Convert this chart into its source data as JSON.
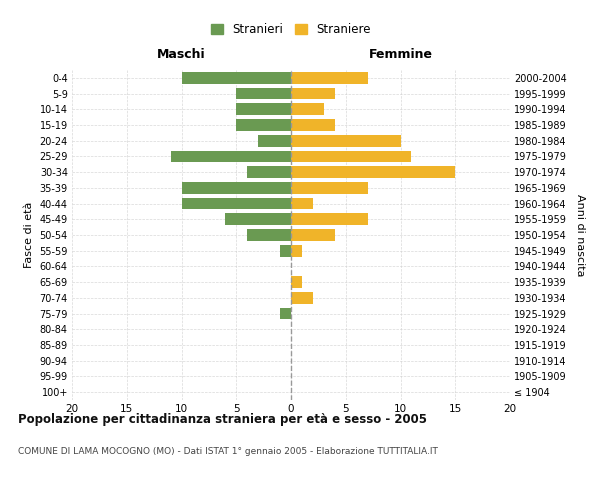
{
  "age_groups": [
    "100+",
    "95-99",
    "90-94",
    "85-89",
    "80-84",
    "75-79",
    "70-74",
    "65-69",
    "60-64",
    "55-59",
    "50-54",
    "45-49",
    "40-44",
    "35-39",
    "30-34",
    "25-29",
    "20-24",
    "15-19",
    "10-14",
    "5-9",
    "0-4"
  ],
  "birth_years": [
    "≤ 1904",
    "1905-1909",
    "1910-1914",
    "1915-1919",
    "1920-1924",
    "1925-1929",
    "1930-1934",
    "1935-1939",
    "1940-1944",
    "1945-1949",
    "1950-1954",
    "1955-1959",
    "1960-1964",
    "1965-1969",
    "1970-1974",
    "1975-1979",
    "1980-1984",
    "1985-1989",
    "1990-1994",
    "1995-1999",
    "2000-2004"
  ],
  "maschi": [
    0,
    0,
    0,
    0,
    0,
    1,
    0,
    0,
    0,
    1,
    4,
    6,
    10,
    10,
    4,
    11,
    3,
    5,
    5,
    5,
    10
  ],
  "femmine": [
    0,
    0,
    0,
    0,
    0,
    0,
    2,
    1,
    0,
    1,
    4,
    7,
    2,
    7,
    15,
    11,
    10,
    4,
    3,
    4,
    7
  ],
  "color_maschi": "#6a9a52",
  "color_femmine": "#f0b429",
  "xlim": 20,
  "title": "Popolazione per cittadinanza straniera per età e sesso - 2005",
  "subtitle": "COMUNE DI LAMA MOCOGNO (MO) - Dati ISTAT 1° gennaio 2005 - Elaborazione TUTTITALIA.IT",
  "xlabel_left": "Maschi",
  "xlabel_right": "Femmine",
  "ylabel_left": "Fasce di età",
  "ylabel_right": "Anni di nascita",
  "legend_stranieri": "Stranieri",
  "legend_straniere": "Straniere",
  "background_color": "#ffffff",
  "grid_color": "#d0d0d0",
  "bar_height": 0.75
}
